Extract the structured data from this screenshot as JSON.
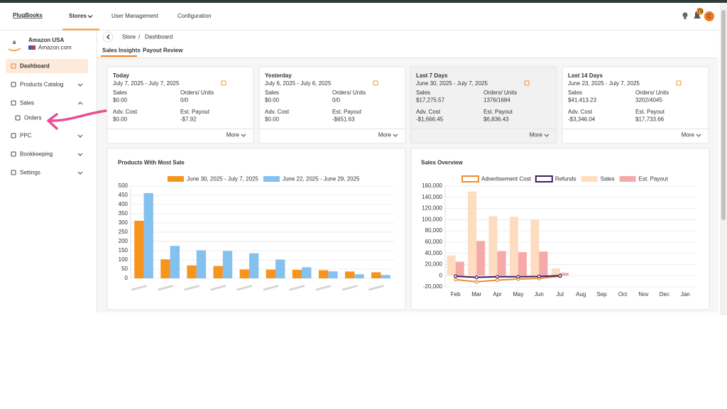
{
  "header": {
    "logo": "PlugBooks",
    "nav": [
      "Stores",
      "User Management",
      "Configuration"
    ],
    "notification_count": "79",
    "avatar": "C"
  },
  "sidebar": {
    "store_logo": "a",
    "store_name": "Amazon USA",
    "store_domain": "Amazon.com",
    "menu": [
      "Dashboard",
      "Products Catalog",
      "Sales",
      "Orders",
      "PPC",
      "Bookkeeping",
      "Settings"
    ]
  },
  "breadcrumb": {
    "items": [
      "Store",
      "Dashboard"
    ],
    "separator": "/"
  },
  "tabs": [
    "Sales Insights",
    "Payout Review"
  ],
  "cards": [
    {
      "title": "Today",
      "range": "July 7, 2025 - July 7, 2025",
      "metrics": [
        {
          "label": "Sales",
          "value": "$0.00"
        },
        {
          "label": "Orders/ Units",
          "value": "0/0"
        },
        {
          "label": "Adv. Cost",
          "value": "$0.00"
        },
        {
          "label": "Est. Payout",
          "value": "-$7.92"
        }
      ],
      "more": "More"
    },
    {
      "title": "Yesterday",
      "range": "July 6, 2025 - July 6, 2025",
      "metrics": [
        {
          "label": "Sales",
          "value": "$0.00"
        },
        {
          "label": "Orders/ Units",
          "value": "0/0"
        },
        {
          "label": "Adv. Cost",
          "value": "$0.00"
        },
        {
          "label": "Est. Payout",
          "value": "-$651.63"
        }
      ],
      "more": "More"
    },
    {
      "title": "Last 7 Days",
      "range": "June 30, 2025 - July 7, 2025",
      "metrics": [
        {
          "label": "Sales",
          "value": "$17,275.57"
        },
        {
          "label": "Orders/ Units",
          "value": "1376/1684"
        },
        {
          "label": "Adv. Cost",
          "value": "-$1,666.45"
        },
        {
          "label": "Est. Payout",
          "value": "$6,836.43"
        }
      ],
      "more": "More"
    },
    {
      "title": "Last 14 Days",
      "range": "June 23, 2025 - July 7, 2025",
      "metrics": [
        {
          "label": "Sales",
          "value": "$41,413.23"
        },
        {
          "label": "Orders/ Units",
          "value": "3202/4045"
        },
        {
          "label": "Adv. Cost",
          "value": "-$3,346.04"
        },
        {
          "label": "Est. Payout",
          "value": "$17,733.66"
        }
      ],
      "more": "More"
    }
  ],
  "chart_data": [
    {
      "type": "bar",
      "title": "Products With Most Sale",
      "categories": [
        null,
        null,
        null,
        null,
        null,
        null,
        null,
        null,
        null,
        null
      ],
      "series": [
        {
          "name": "June 30, 2025 - July 7, 2025",
          "color": "#f7941d",
          "values": [
            312,
            103,
            70,
            67,
            48,
            47,
            46,
            44,
            37,
            33
          ]
        },
        {
          "name": "June 22, 2025 - June 29, 2025",
          "color": "#84c1ee",
          "values": [
            462,
            176,
            152,
            148,
            136,
            102,
            60,
            38,
            22,
            18
          ]
        }
      ],
      "ylim": [
        0,
        500
      ],
      "yticks": [
        0,
        50,
        100,
        150,
        200,
        250,
        300,
        350,
        400,
        450,
        500
      ],
      "grid": true
    },
    {
      "type": "combo",
      "title": "Sales Overview",
      "categories": [
        "Feb",
        "Mar",
        "Apr",
        "May",
        "Jun",
        "Jul",
        "Aug",
        "Sep",
        "Oct",
        "Nov",
        "Dec",
        "Jan"
      ],
      "series": [
        {
          "name": "Advertisement Cost",
          "type": "line",
          "color": "#f08c2e",
          "values": [
            -7000,
            -11000,
            -8000,
            -6000,
            -5000,
            -1000,
            null,
            null,
            null,
            null,
            null,
            null
          ]
        },
        {
          "name": "Refunds",
          "type": "line",
          "color": "#3c1f5e",
          "values": [
            -1000,
            -3000,
            -2000,
            -2000,
            -1500,
            0,
            null,
            null,
            null,
            null,
            null,
            null
          ]
        },
        {
          "name": "Sales",
          "type": "bar",
          "color": "#fddcc0",
          "values": [
            36000,
            150000,
            106000,
            105000,
            100000,
            13000,
            null,
            null,
            null,
            null,
            null,
            null
          ]
        },
        {
          "name": "Est. Payout",
          "type": "bar",
          "color": "#f6a9a9",
          "values": [
            25000,
            62000,
            44000,
            42000,
            43000,
            5000,
            null,
            null,
            null,
            null,
            null,
            null
          ]
        }
      ],
      "ylim": [
        -20000,
        160000
      ],
      "yticks": [
        {
          "value": -20000,
          "label": "-20,000"
        },
        0,
        {
          "value": 20000,
          "label": "20,000"
        },
        {
          "value": 40000,
          "label": "40,000"
        },
        {
          "value": 60000,
          "label": "60,000"
        },
        {
          "value": 80000,
          "label": "80,000"
        },
        {
          "value": 100000,
          "label": "100,000"
        },
        {
          "value": 120000,
          "label": "120,000"
        },
        {
          "value": 140000,
          "label": "140,000"
        },
        {
          "value": 160000,
          "label": "160,000"
        }
      ],
      "grid": true
    }
  ]
}
